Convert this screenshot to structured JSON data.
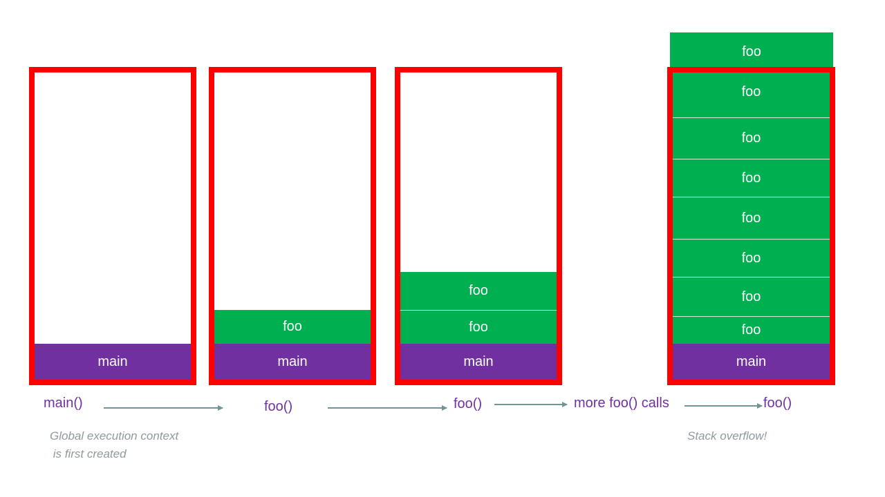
{
  "colors": {
    "stack_border": "#ff0000",
    "frame_main": "#7030a0",
    "frame_foo": "#00b050",
    "call_label": "#7030a0",
    "arrow": "#6f9494",
    "note": "#8f9a9c"
  },
  "frames": {
    "main_label": "main",
    "foo_label": "foo"
  },
  "stacks": [
    {
      "frames": [
        "main"
      ]
    },
    {
      "frames": [
        "main",
        "foo"
      ]
    },
    {
      "frames": [
        "main",
        "foo",
        "foo"
      ]
    },
    {
      "frames": [
        "main",
        "foo",
        "foo",
        "foo",
        "foo",
        "foo",
        "foo",
        "foo"
      ],
      "overflow_frame": "foo"
    }
  ],
  "calls": {
    "step1": "main()",
    "step2": "foo()",
    "step3": "foo()",
    "step4": "more foo() calls",
    "step5": "foo()"
  },
  "notes": {
    "global": "Global execution context\n is first created",
    "overflow": "Stack overflow!"
  }
}
